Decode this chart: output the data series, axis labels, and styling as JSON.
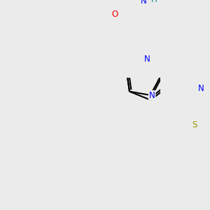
{
  "background_color": "#ebebeb",
  "atom_colors": {
    "C": "#000000",
    "N": "#0000ff",
    "O": "#ff0000",
    "S": "#999900",
    "H": "#008888"
  },
  "bond_lw": 1.5,
  "font_size": 8.5
}
